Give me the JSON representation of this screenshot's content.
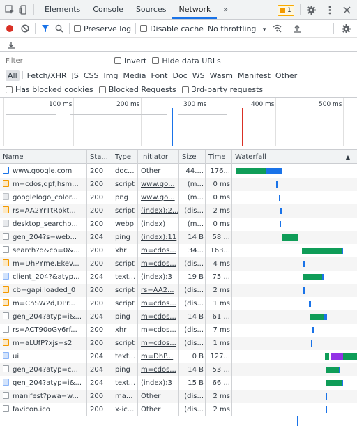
{
  "tabs": [
    "Elements",
    "Console",
    "Sources",
    "Network",
    "»"
  ],
  "active_tab": "Network",
  "issues_badge": "1",
  "toolbar": {
    "preserve_log": "Preserve log",
    "disable_cache": "Disable cache",
    "throttling": "No throttling",
    "throttling_arrow": "▾"
  },
  "filter": {
    "placeholder": "Filter",
    "invert": "Invert",
    "hide_data_urls": "Hide data URLs"
  },
  "types": [
    "All",
    "Fetch/XHR",
    "JS",
    "CSS",
    "Img",
    "Media",
    "Font",
    "Doc",
    "WS",
    "Wasm",
    "Manifest",
    "Other"
  ],
  "active_type": "All",
  "blocked": {
    "has_blocked_cookies": "Has blocked cookies",
    "blocked_requests": "Blocked Requests",
    "third_party": "3rd-party requests"
  },
  "overview_ticks": [
    "100 ms",
    "200 ms",
    "300 ms",
    "400 ms",
    "500 ms"
  ],
  "columns": {
    "name": "Name",
    "status": "Sta...",
    "type": "Type",
    "initiator": "Initiator",
    "size": "Size",
    "time": "Time",
    "waterfall": "Waterfall",
    "sort_arrow": "▲"
  },
  "requests": [
    {
      "name": "www.google.com",
      "status": "200",
      "type": "doc...",
      "initiator": "Other",
      "initiator_link": false,
      "size": "44....",
      "time": "176...",
      "icon": "doc"
    },
    {
      "name": "m=cdos,dpf,hsm...",
      "status": "200",
      "type": "script",
      "initiator": "www.go...",
      "initiator_link": true,
      "size": "(m...",
      "time": "0 ms",
      "icon": "script"
    },
    {
      "name": "googlelogo_color...",
      "status": "200",
      "type": "png",
      "initiator": "www.go...",
      "initiator_link": true,
      "size": "(m...",
      "time": "0 ms",
      "icon": "img"
    },
    {
      "name": "rs=AA2YrTtRpkt...",
      "status": "200",
      "type": "script",
      "initiator": "(index):2...",
      "initiator_link": true,
      "size": "(dis...",
      "time": "2 ms",
      "icon": "script"
    },
    {
      "name": "desktop_searchb...",
      "status": "200",
      "type": "webp",
      "initiator": "(index)",
      "initiator_link": true,
      "size": "(m...",
      "time": "0 ms",
      "icon": "img"
    },
    {
      "name": "gen_204?s=web...",
      "status": "204",
      "type": "ping",
      "initiator": "(index):11",
      "initiator_link": true,
      "size": "14 B",
      "time": "58 ...",
      "icon": "other"
    },
    {
      "name": "search?q&cp=0&...",
      "status": "200",
      "type": "xhr",
      "initiator": "m=cdos...",
      "initiator_link": true,
      "size": "34...",
      "time": "163...",
      "icon": "other"
    },
    {
      "name": "m=DhPYme,Ekev...",
      "status": "200",
      "type": "script",
      "initiator": "m=cdos...",
      "initiator_link": true,
      "size": "(dis...",
      "time": "4 ms",
      "icon": "script"
    },
    {
      "name": "client_204?&atyp...",
      "status": "204",
      "type": "text...",
      "initiator": "(index):3",
      "initiator_link": true,
      "size": "19 B",
      "time": "75 ...",
      "icon": "text"
    },
    {
      "name": "cb=gapi.loaded_0",
      "status": "200",
      "type": "script",
      "initiator": "rs=AA2...",
      "initiator_link": true,
      "size": "(dis...",
      "time": "2 ms",
      "icon": "script"
    },
    {
      "name": "m=CnSW2d,DPr...",
      "status": "200",
      "type": "script",
      "initiator": "m=cdos...",
      "initiator_link": true,
      "size": "(dis...",
      "time": "1 ms",
      "icon": "script"
    },
    {
      "name": "gen_204?atyp=i&...",
      "status": "204",
      "type": "ping",
      "initiator": "m=cdos...",
      "initiator_link": true,
      "size": "14 B",
      "time": "61 ...",
      "icon": "other"
    },
    {
      "name": "rs=ACT90oGy6rf...",
      "status": "200",
      "type": "xhr",
      "initiator": "m=cdos...",
      "initiator_link": true,
      "size": "(dis...",
      "time": "7 ms",
      "icon": "other"
    },
    {
      "name": "m=aLUfP?xjs=s2",
      "status": "200",
      "type": "script",
      "initiator": "m=cdos...",
      "initiator_link": true,
      "size": "(dis...",
      "time": "1 ms",
      "icon": "script"
    },
    {
      "name": "ui",
      "status": "204",
      "type": "text...",
      "initiator": "m=DhP...",
      "initiator_link": true,
      "size": "0 B",
      "time": "127...",
      "icon": "text"
    },
    {
      "name": "gen_204?atyp=c...",
      "status": "204",
      "type": "ping",
      "initiator": "m=cdos...",
      "initiator_link": true,
      "size": "14 B",
      "time": "53 ...",
      "icon": "other"
    },
    {
      "name": "gen_204?atyp=i&...",
      "status": "204",
      "type": "text...",
      "initiator": "(index):3",
      "initiator_link": true,
      "size": "15 B",
      "time": "66 ...",
      "icon": "text"
    },
    {
      "name": "manifest?pwa=w...",
      "status": "200",
      "type": "ma...",
      "initiator": "Other",
      "initiator_link": false,
      "size": "(dis...",
      "time": "2 ms",
      "icon": "other"
    },
    {
      "name": "favicon.ico",
      "status": "200",
      "type": "x-ic...",
      "initiator": "Other",
      "initiator_link": false,
      "size": "(dis...",
      "time": "2 ms",
      "icon": "other"
    }
  ],
  "colors": {
    "record": "#d93025",
    "accent": "#1a73e8",
    "waiting": "#0f9d58",
    "download": "#1a73e8",
    "dom_loaded": "#1a73e8",
    "load": "#d93025",
    "badge": "#f29900"
  }
}
